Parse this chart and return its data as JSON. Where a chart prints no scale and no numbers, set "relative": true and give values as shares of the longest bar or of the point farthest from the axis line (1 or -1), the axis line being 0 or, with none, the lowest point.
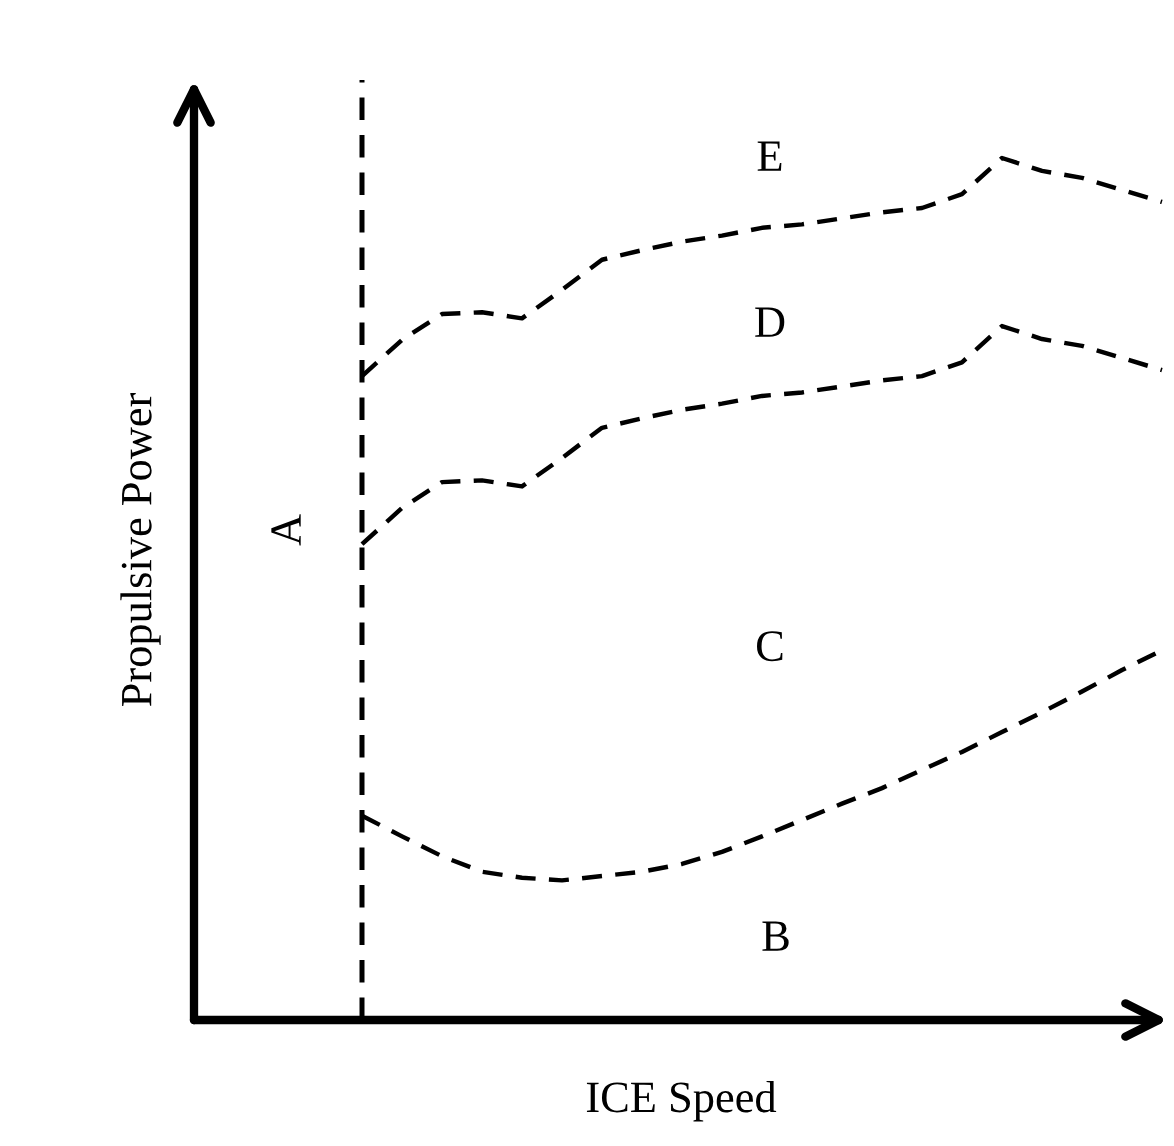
{
  "chart_data": {
    "type": "line",
    "relative": true,
    "xlabel": "ICE Speed",
    "ylabel": "Propulsive Power",
    "categories": [
      null,
      null,
      null,
      null,
      null,
      null,
      null,
      null,
      null,
      null,
      null,
      null,
      null,
      null,
      null,
      null,
      null,
      null,
      null,
      null,
      null
    ],
    "line_style": "dashed",
    "marker": "none",
    "series": [
      {
        "color": "#000000",
        "values": [
          0.747,
          0.789,
          0.819,
          0.821,
          0.814,
          0.847,
          0.882,
          0.893,
          0.903,
          0.91,
          0.919,
          0.923,
          0.93,
          0.937,
          0.942,
          0.958,
          1.0,
          0.985,
          0.977,
          0.963,
          0.949
        ]
      },
      {
        "color": "#000000",
        "values": [
          0.552,
          0.594,
          0.624,
          0.626,
          0.619,
          0.652,
          0.687,
          0.698,
          0.708,
          0.715,
          0.724,
          0.728,
          0.735,
          0.742,
          0.747,
          0.763,
          0.805,
          0.79,
          0.782,
          0.768,
          0.754
        ]
      },
      {
        "color": "#000000",
        "values": [
          0.237,
          0.213,
          0.19,
          0.172,
          0.165,
          0.162,
          0.167,
          0.172,
          0.181,
          0.195,
          0.213,
          0.232,
          0.251,
          0.269,
          0.29,
          0.311,
          0.334,
          0.357,
          0.381,
          0.406,
          0.429
        ]
      }
    ],
    "annotations": [
      "A",
      "B",
      "C",
      "D",
      "E"
    ]
  }
}
